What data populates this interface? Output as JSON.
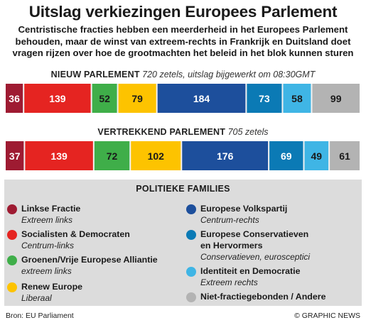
{
  "header": {
    "title": "Uitslag verkiezingen Europees Parlement",
    "subtitle_lines": [
      "Centristische fracties hebben een meerderheid in het Europees Parlement",
      "behouden, maar de winst van extreem-rechts in Frankrijk en Duitsland doet",
      "vragen rijzen over hoe de grootmachten het beleid in het blok kunnen sturen"
    ]
  },
  "sections": {
    "new": {
      "label": "NIEUW PARLEMENT",
      "detail": "720 zetels, uitslag bijgewerkt om 08:30GMT"
    },
    "outgoing": {
      "label": "VERTREKKEND PARLEMENT",
      "detail": "705 zetels"
    }
  },
  "chart_data": [
    {
      "type": "bar",
      "stacked": true,
      "total": 720,
      "categories": [
        "Linkse Fractie",
        "Socialisten & Democraten",
        "Groenen/Vrije Europese Alliantie",
        "Renew Europe",
        "Europese Volkspartij",
        "Europese Conservatieven en Hervormers",
        "Identiteit en Democratie",
        "Niet-fractiegebonden / Andere"
      ],
      "values": [
        36,
        139,
        52,
        79,
        184,
        73,
        58,
        99
      ]
    },
    {
      "type": "bar",
      "stacked": true,
      "total": 705,
      "categories": [
        "Linkse Fractie",
        "Socialisten & Democraten",
        "Groenen/Vrije Europese Alliantie",
        "Renew Europe",
        "Europese Volkspartij",
        "Europese Conservatieven en Hervormers",
        "Identiteit en Democratie",
        "Niet-fractiegebonden / Andere"
      ],
      "values": [
        37,
        139,
        72,
        102,
        176,
        69,
        49,
        61
      ]
    }
  ],
  "colors": [
    "#9e1b32",
    "#e52421",
    "#3fae49",
    "#fdc300",
    "#1d4f9c",
    "#0b7ab5",
    "#3fb5e5",
    "#b3b3b3"
  ],
  "label_colors": [
    "#ffffff",
    "#ffffff",
    "#1a1a1a",
    "#1a1a1a",
    "#ffffff",
    "#ffffff",
    "#1a1a1a",
    "#1a1a1a"
  ],
  "legend": {
    "title": "POLITIEKE FAMILIES",
    "items": [
      {
        "name": "Linkse Fractie",
        "desc": "Extreem links",
        "color": "#9e1b32",
        "icon": "dot-icon"
      },
      {
        "name": "Socialisten & Democraten",
        "desc": "Centrum-links",
        "color": "#e52421",
        "icon": "dot-icon"
      },
      {
        "name": "Groenen/Vrije Europese Alliantie",
        "desc": "extreem links",
        "color": "#3fae49",
        "icon": "dot-icon"
      },
      {
        "name": "Renew Europe",
        "desc": "Liberaal",
        "color": "#fdc300",
        "icon": "dot-icon"
      },
      {
        "name": "Europese Volkspartij",
        "desc": "Centrum-rechts",
        "color": "#1d4f9c",
        "icon": "dot-icon"
      },
      {
        "name": "Europese Conservatieven",
        "name2": "en Hervormers",
        "desc": "Conservatieven, eurosceptici",
        "color": "#0b7ab5",
        "icon": "dot-icon"
      },
      {
        "name": "Identiteit en Democratie",
        "desc": "Extreem rechts",
        "color": "#3fb5e5",
        "icon": "dot-icon"
      },
      {
        "name": "Niet-fractiegebonden / Andere",
        "desc": "",
        "color": "#b3b3b3",
        "icon": "dot-icon"
      }
    ]
  },
  "footer": {
    "source": "Bron: EU Parliament",
    "credit": "© GRAPHIC NEWS"
  }
}
